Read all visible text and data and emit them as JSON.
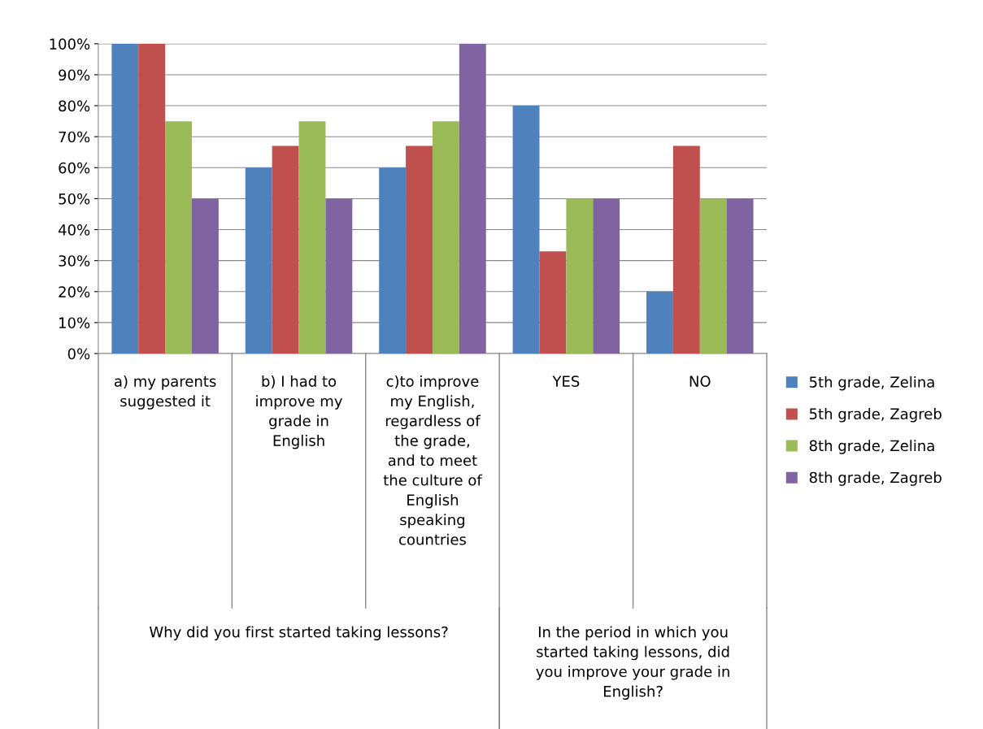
{
  "chart_data": {
    "type": "bar",
    "categories": [
      "a) my parents\nsuggested it",
      "b) I had to\nimprove my\ngrade in\nEnglish",
      "c)to improve\nmy English,\nregardless of\nthe grade,\nand to meet\nthe culture of\nEnglish\nspeaking\ncountries",
      "YES",
      "NO"
    ],
    "series": [
      {
        "name": "5th grade, Zelina",
        "color": "#4f81bd",
        "values": [
          100,
          60,
          60,
          80,
          20
        ]
      },
      {
        "name": "5th grade, Zagreb",
        "color": "#c0504d",
        "values": [
          100,
          67,
          67,
          33,
          67
        ]
      },
      {
        "name": "8th grade, Zelina",
        "color": "#9bbb59",
        "values": [
          75,
          75,
          75,
          50,
          50
        ]
      },
      {
        "name": "8th grade, Zagreb",
        "color": "#8064a2",
        "values": [
          50,
          50,
          100,
          50,
          50
        ]
      }
    ],
    "ylim": [
      0,
      100
    ],
    "yticks": [
      {
        "value": 0,
        "label": "0%"
      },
      {
        "value": 10,
        "label": "10%"
      },
      {
        "value": 20,
        "label": "20%"
      },
      {
        "value": 30,
        "label": "30%"
      },
      {
        "value": 40,
        "label": "40%"
      },
      {
        "value": 50,
        "label": "50%"
      },
      {
        "value": 60,
        "label": "60%"
      },
      {
        "value": 70,
        "label": "70%"
      },
      {
        "value": 80,
        "label": "80%"
      },
      {
        "value": 90,
        "label": "90%"
      },
      {
        "value": 100,
        "label": "100%"
      }
    ],
    "annotations": [
      "Why did you first started taking lessons?",
      "In the period in which you\nstarted taking lessons, did\nyou improve your grade in\nEnglish?"
    ],
    "grid": "y",
    "legend": "right"
  }
}
